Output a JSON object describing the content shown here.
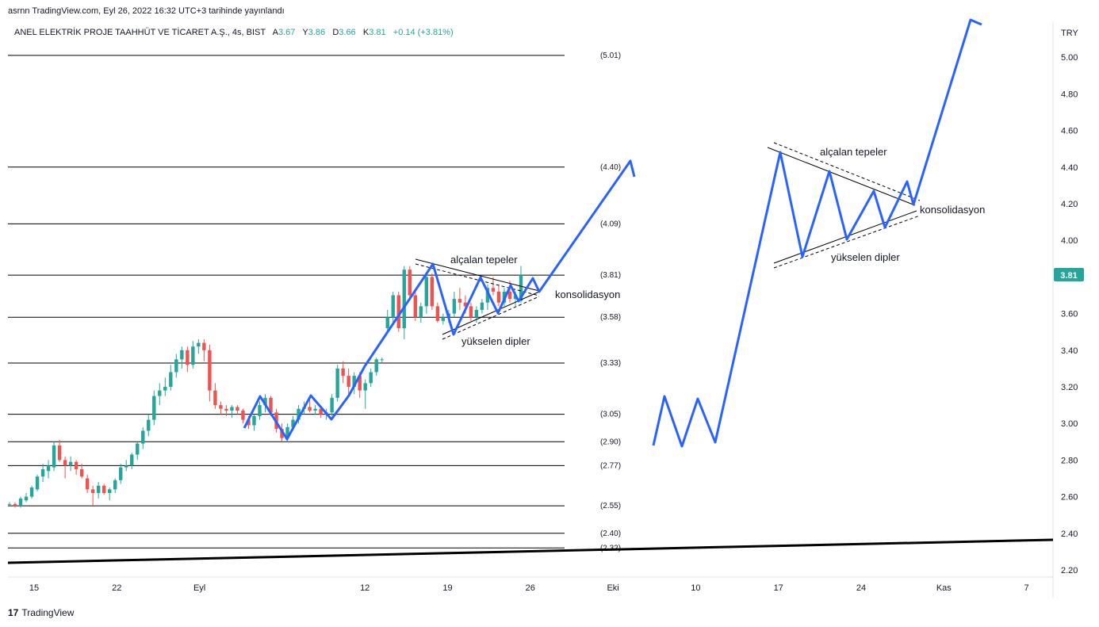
{
  "header": {
    "published": "asrnn TradingView.com, Eyl 26, 2022 16:32 UTC+3 tarihinde yayınlandı"
  },
  "symbol": {
    "name": "ANEL ELEKTRİK PROJE TAAHHÜT VE TİCARET A.Ş., 4s, BIST",
    "o_label": "A",
    "o_value": "3.67",
    "h_label": "Y",
    "h_value": "3.86",
    "l_label": "D",
    "l_value": "3.66",
    "c_label": "K",
    "c_value": "3.81",
    "change": "+0.14 (+3.81%)"
  },
  "footer": {
    "brand": "TradingView",
    "logo_glyph": "17"
  },
  "chart_data": {
    "type": "candlestick",
    "currency": "TRY",
    "last_price": "3.81",
    "ylim": [
      2.15,
      5.2
    ],
    "y_ticks": [
      "5.00",
      "4.80",
      "4.60",
      "4.40",
      "4.20",
      "4.00",
      "3.81",
      "3.60",
      "3.40",
      "3.20",
      "3.00",
      "2.80",
      "2.60",
      "2.40",
      "2.20"
    ],
    "x_ticks": [
      {
        "label": "15",
        "day": 15
      },
      {
        "label": "22",
        "day": 22
      },
      {
        "label": "Eyl",
        "day": 29
      },
      {
        "label": "12",
        "day": 43
      },
      {
        "label": "19",
        "day": 50
      },
      {
        "label": "26",
        "day": 57
      },
      {
        "label": "Eki",
        "day": 64
      },
      {
        "label": "10",
        "day": 71
      },
      {
        "label": "17",
        "day": 78
      },
      {
        "label": "24",
        "day": 85
      },
      {
        "label": "Kas",
        "day": 92
      },
      {
        "label": "7",
        "day": 99
      }
    ],
    "levels": [
      "5.01",
      "4.40",
      "4.09",
      "3.81",
      "3.58",
      "3.33",
      "3.05",
      "2.90",
      "2.77",
      "2.55",
      "2.40",
      "2.32"
    ],
    "candles": [
      [
        2.56,
        2.57,
        2.55,
        2.56
      ],
      [
        2.56,
        2.57,
        2.54,
        2.55
      ],
      [
        2.55,
        2.6,
        2.54,
        2.59
      ],
      [
        2.58,
        2.62,
        2.57,
        2.6
      ],
      [
        2.6,
        2.66,
        2.59,
        2.65
      ],
      [
        2.64,
        2.72,
        2.63,
        2.71
      ],
      [
        2.71,
        2.78,
        2.68,
        2.75
      ],
      [
        2.74,
        2.8,
        2.7,
        2.77
      ],
      [
        2.76,
        2.9,
        2.74,
        2.88
      ],
      [
        2.88,
        2.91,
        2.79,
        2.8
      ],
      [
        2.8,
        2.82,
        2.7,
        2.77
      ],
      [
        2.77,
        2.82,
        2.74,
        2.79
      ],
      [
        2.79,
        2.8,
        2.72,
        2.75
      ],
      [
        2.75,
        2.78,
        2.7,
        2.71
      ],
      [
        2.7,
        2.72,
        2.62,
        2.64
      ],
      [
        2.64,
        2.66,
        2.55,
        2.62
      ],
      [
        2.62,
        2.68,
        2.59,
        2.66
      ],
      [
        2.66,
        2.67,
        2.61,
        2.62
      ],
      [
        2.62,
        2.65,
        2.58,
        2.64
      ],
      [
        2.64,
        2.7,
        2.62,
        2.69
      ],
      [
        2.69,
        2.78,
        2.67,
        2.76
      ],
      [
        2.76,
        2.8,
        2.74,
        2.77
      ],
      [
        2.77,
        2.84,
        2.75,
        2.83
      ],
      [
        2.83,
        2.9,
        2.8,
        2.89
      ],
      [
        2.89,
        2.98,
        2.86,
        2.96
      ],
      [
        2.96,
        3.05,
        2.93,
        3.02
      ],
      [
        3.02,
        3.18,
        2.99,
        3.15
      ],
      [
        3.15,
        3.22,
        3.1,
        3.18
      ],
      [
        3.18,
        3.25,
        3.15,
        3.2
      ],
      [
        3.2,
        3.32,
        3.18,
        3.28
      ],
      [
        3.28,
        3.38,
        3.25,
        3.35
      ],
      [
        3.35,
        3.42,
        3.3,
        3.4
      ],
      [
        3.4,
        3.42,
        3.28,
        3.32
      ],
      [
        3.32,
        3.45,
        3.3,
        3.42
      ],
      [
        3.42,
        3.46,
        3.38,
        3.44
      ],
      [
        3.44,
        3.46,
        3.34,
        3.4
      ],
      [
        3.4,
        3.43,
        3.12,
        3.18
      ],
      [
        3.18,
        3.22,
        3.08,
        3.1
      ],
      [
        3.1,
        3.12,
        3.05,
        3.08
      ],
      [
        3.08,
        3.1,
        3.04,
        3.07
      ],
      [
        3.07,
        3.1,
        3.03,
        3.09
      ],
      [
        3.09,
        3.1,
        3.05,
        3.07
      ],
      [
        3.07,
        3.08,
        3.0,
        3.02
      ],
      [
        3.02,
        3.04,
        2.97,
        2.99
      ],
      [
        2.99,
        3.05,
        2.96,
        3.04
      ],
      [
        3.04,
        3.12,
        3.02,
        3.1
      ],
      [
        3.1,
        3.16,
        3.06,
        3.14
      ],
      [
        3.14,
        3.15,
        3.04,
        3.06
      ],
      [
        3.06,
        3.08,
        2.95,
        2.97
      ],
      [
        2.97,
        3.0,
        2.9,
        2.92
      ],
      [
        2.92,
        3.0,
        2.9,
        2.98
      ],
      [
        2.98,
        3.04,
        2.96,
        3.02
      ],
      [
        3.02,
        3.1,
        3.0,
        3.08
      ],
      [
        3.08,
        3.12,
        3.05,
        3.09
      ],
      [
        3.09,
        3.14,
        3.06,
        3.07
      ],
      [
        3.07,
        3.1,
        3.05,
        3.08
      ],
      [
        3.08,
        3.09,
        3.03,
        3.05
      ],
      [
        3.05,
        3.08,
        3.02,
        3.06
      ],
      [
        3.06,
        3.16,
        3.04,
        3.14
      ],
      [
        3.14,
        3.32,
        3.12,
        3.3
      ],
      [
        3.3,
        3.34,
        3.22,
        3.26
      ],
      [
        3.26,
        3.3,
        3.16,
        3.2
      ],
      [
        3.2,
        3.28,
        3.16,
        3.26
      ],
      [
        3.26,
        3.28,
        3.14,
        3.18
      ],
      [
        3.18,
        3.24,
        3.08,
        3.22
      ],
      [
        3.22,
        3.3,
        3.2,
        3.28
      ],
      [
        3.28,
        3.36,
        3.26,
        3.35
      ],
      [
        3.35,
        3.36,
        3.33,
        3.35
      ],
      [
        3.52,
        3.62,
        3.5,
        3.58
      ],
      [
        3.58,
        3.72,
        3.55,
        3.7
      ],
      [
        3.7,
        3.72,
        3.5,
        3.52
      ],
      [
        3.52,
        3.86,
        3.46,
        3.84
      ],
      [
        3.84,
        3.86,
        3.68,
        3.7
      ],
      [
        3.7,
        3.72,
        3.56,
        3.58
      ],
      [
        3.58,
        3.66,
        3.55,
        3.64
      ],
      [
        3.64,
        3.82,
        3.6,
        3.8
      ],
      [
        3.8,
        3.82,
        3.62,
        3.64
      ],
      [
        3.64,
        3.66,
        3.55,
        3.56
      ],
      [
        3.56,
        3.6,
        3.54,
        3.58
      ],
      [
        3.58,
        3.62,
        3.55,
        3.6
      ],
      [
        3.6,
        3.72,
        3.58,
        3.68
      ],
      [
        3.68,
        3.74,
        3.62,
        3.66
      ],
      [
        3.66,
        3.7,
        3.6,
        3.64
      ],
      [
        3.64,
        3.66,
        3.56,
        3.58
      ],
      [
        3.58,
        3.64,
        3.55,
        3.62
      ],
      [
        3.62,
        3.68,
        3.6,
        3.66
      ],
      [
        3.66,
        3.76,
        3.62,
        3.74
      ],
      [
        3.74,
        3.8,
        3.7,
        3.72
      ],
      [
        3.72,
        3.76,
        3.64,
        3.66
      ],
      [
        3.66,
        3.74,
        3.64,
        3.72
      ],
      [
        3.72,
        3.78,
        3.66,
        3.68
      ],
      [
        3.68,
        3.72,
        3.64,
        3.7
      ],
      [
        3.67,
        3.86,
        3.66,
        3.81
      ]
    ],
    "annotations": [
      {
        "text": "alçalan tepeler"
      },
      {
        "text": "konsolidasyon"
      },
      {
        "text": "yükselen dipler"
      },
      {
        "text": "alçalan tepeler"
      },
      {
        "text": "konsolidasyon"
      },
      {
        "text": "yükselen dipler"
      }
    ],
    "colors": {
      "up": "#26a69a",
      "down": "#ef5350",
      "projection": "#2962ff",
      "last_badge": "#26a69a"
    }
  }
}
